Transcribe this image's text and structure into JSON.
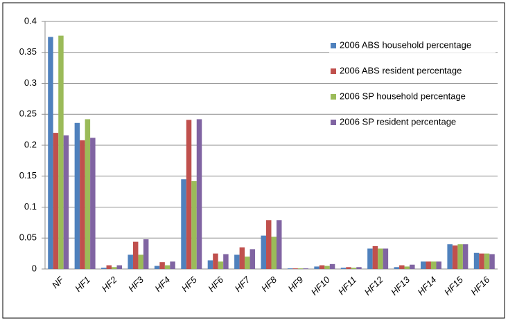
{
  "chart_data": {
    "type": "bar",
    "categories": [
      "NF",
      "HF1",
      "HF2",
      "HF3",
      "HF4",
      "HF5",
      "HF6",
      "HF7",
      "HF8",
      "HF9",
      "HF10",
      "HF11",
      "HF12",
      "HF13",
      "HF14",
      "HF15",
      "HF16"
    ],
    "series": [
      {
        "name": "2006 ABS household percentage",
        "color": "#4f81bd",
        "values": [
          0.375,
          0.236,
          0.002,
          0.023,
          0.005,
          0.145,
          0.014,
          0.023,
          0.054,
          0.001,
          0.004,
          0.002,
          0.033,
          0.003,
          0.012,
          0.04,
          0.026
        ]
      },
      {
        "name": "2006 ABS resident percentage",
        "color": "#c0504d",
        "values": [
          0.22,
          0.208,
          0.006,
          0.044,
          0.011,
          0.241,
          0.025,
          0.035,
          0.079,
          0.001,
          0.006,
          0.003,
          0.037,
          0.006,
          0.012,
          0.038,
          0.025
        ]
      },
      {
        "name": "2006 SP household percentage",
        "color": "#9bbb59",
        "values": [
          0.377,
          0.242,
          0.003,
          0.023,
          0.006,
          0.142,
          0.012,
          0.02,
          0.052,
          0.001,
          0.005,
          0.002,
          0.033,
          0.004,
          0.012,
          0.04,
          0.025
        ]
      },
      {
        "name": "2006 SP resident percentage",
        "color": "#8064a2",
        "values": [
          0.216,
          0.212,
          0.006,
          0.048,
          0.012,
          0.242,
          0.024,
          0.032,
          0.079,
          0.001,
          0.008,
          0.003,
          0.033,
          0.007,
          0.012,
          0.04,
          0.024
        ]
      }
    ],
    "ylim": [
      0,
      0.4
    ],
    "yticks": [
      0,
      0.05,
      0.1,
      0.15,
      0.2,
      0.25,
      0.3,
      0.35,
      0.4
    ],
    "grid": true,
    "legend": "upper right"
  }
}
